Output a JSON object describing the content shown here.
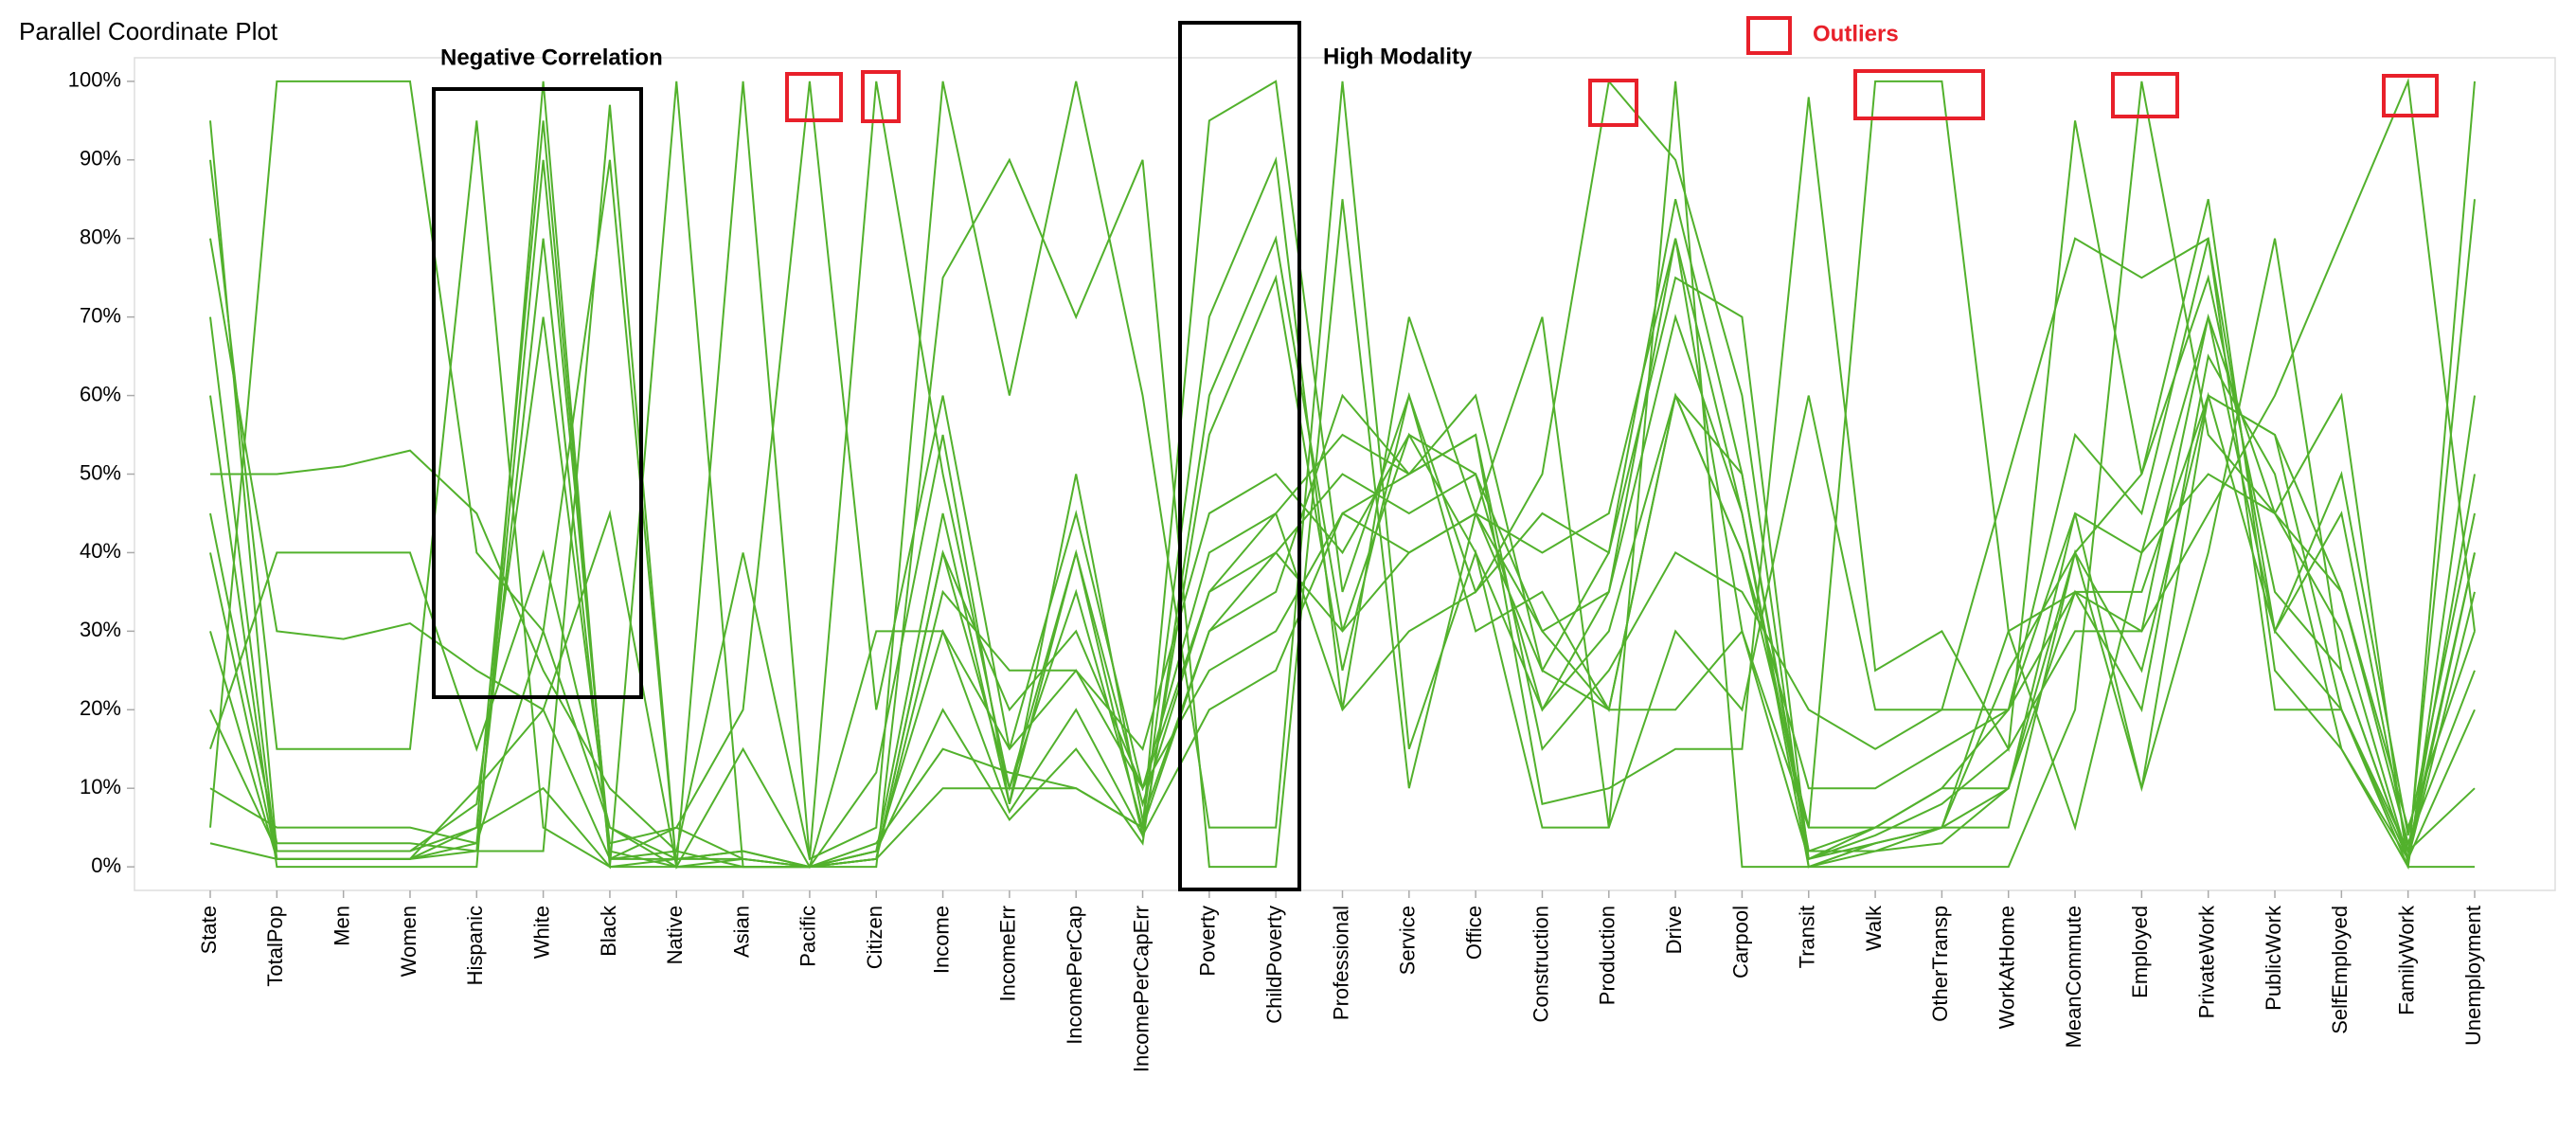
{
  "chart_data": {
    "type": "parallel",
    "title": "Parallel Coordinate Plot",
    "annotations": [
      "Negative Correlation",
      "High Modality",
      "Outliers"
    ],
    "categories": [
      "State",
      "TotalPop",
      "Men",
      "Women",
      "Hispanic",
      "White",
      "Black",
      "Native",
      "Asian",
      "Pacific",
      "Citizen",
      "Income",
      "IncomeErr",
      "IncomePerCap",
      "IncomePerCapErr",
      "Poverty",
      "ChildPoverty",
      "Professional",
      "Service",
      "Office",
      "Construction",
      "Production",
      "Drive",
      "Carpool",
      "Transit",
      "Walk",
      "OtherTransp",
      "WorkAtHome",
      "MeanCommute",
      "Employed",
      "PrivateWork",
      "PublicWork",
      "SelfEmployed",
      "FamilyWork",
      "Unemployment"
    ],
    "color": "#52b12c",
    "ylim": [
      -3,
      103
    ],
    "yticks": [
      {
        "value": 0,
        "label": "0%"
      },
      {
        "value": 10,
        "label": "10%"
      },
      {
        "value": 20,
        "label": "20%"
      },
      {
        "value": 30,
        "label": "30%"
      },
      {
        "value": 40,
        "label": "40%"
      },
      {
        "value": 50,
        "label": "50%"
      },
      {
        "value": 60,
        "label": "60%"
      },
      {
        "value": 70,
        "label": "70%"
      },
      {
        "value": 80,
        "label": "80%"
      },
      {
        "value": 90,
        "label": "90%"
      },
      {
        "value": 100,
        "label": "100%"
      }
    ],
    "series": [
      {
        "values": [
          5,
          100,
          100,
          100,
          40,
          30,
          5,
          1,
          2,
          0,
          1,
          40,
          10,
          35,
          5,
          30,
          40,
          50,
          45,
          50,
          20,
          30,
          60,
          40,
          5,
          5,
          10,
          20,
          45,
          40,
          70,
          30,
          20,
          2,
          40
        ]
      },
      {
        "values": [
          95,
          2,
          2,
          2,
          5,
          95,
          1,
          1,
          1,
          0,
          2,
          45,
          8,
          40,
          4,
          20,
          25,
          45,
          40,
          45,
          30,
          35,
          80,
          30,
          1,
          3,
          5,
          25,
          40,
          50,
          75,
          35,
          25,
          1,
          20
        ]
      },
      {
        "values": [
          10,
          5,
          5,
          5,
          3,
          30,
          90,
          0,
          1,
          0,
          2,
          20,
          6,
          15,
          3,
          60,
          80,
          30,
          55,
          40,
          20,
          35,
          70,
          45,
          2,
          2,
          3,
          10,
          35,
          20,
          65,
          50,
          15,
          0,
          60
        ]
      },
      {
        "values": [
          90,
          15,
          15,
          15,
          95,
          5,
          0,
          1,
          2,
          0,
          30,
          30,
          7,
          20,
          4,
          55,
          75,
          25,
          60,
          35,
          45,
          40,
          75,
          70,
          1,
          4,
          8,
          15,
          30,
          30,
          70,
          45,
          30,
          1,
          50
        ]
      },
      {
        "values": [
          3,
          1,
          1,
          1,
          10,
          20,
          1,
          5,
          20,
          100,
          20,
          60,
          15,
          45,
          10,
          25,
          30,
          45,
          50,
          60,
          25,
          20,
          60,
          40,
          10,
          10,
          15,
          20,
          35,
          35,
          60,
          55,
          35,
          5,
          30
        ]
      },
      {
        "values": [
          50,
          50,
          51,
          53,
          45,
          25,
          10,
          2,
          40,
          1,
          100,
          50,
          10,
          40,
          8,
          35,
          45,
          55,
          50,
          55,
          15,
          25,
          40,
          35,
          20,
          15,
          20,
          20,
          55,
          45,
          80,
          20,
          20,
          1,
          35
        ]
      },
      {
        "values": [
          70,
          1,
          1,
          1,
          5,
          10,
          0,
          100,
          0,
          0,
          3,
          15,
          12,
          10,
          5,
          95,
          100,
          35,
          60,
          30,
          35,
          20,
          60,
          50,
          1,
          5,
          10,
          10,
          45,
          10,
          40,
          80,
          25,
          1,
          85
        ]
      },
      {
        "values": [
          15,
          40,
          40,
          40,
          15,
          40,
          5,
          0,
          100,
          1,
          5,
          100,
          60,
          100,
          60,
          5,
          5,
          100,
          15,
          40,
          5,
          5,
          30,
          20,
          60,
          20,
          20,
          50,
          80,
          75,
          80,
          30,
          45,
          2,
          10
        ]
      },
      {
        "values": [
          40,
          1,
          1,
          1,
          2,
          90,
          2,
          0,
          0,
          0,
          1,
          40,
          20,
          30,
          10,
          40,
          45,
          20,
          30,
          35,
          50,
          100,
          90,
          60,
          0,
          2,
          5,
          10,
          40,
          25,
          60,
          30,
          50,
          4,
          45
        ]
      },
      {
        "values": [
          20,
          2,
          2,
          2,
          8,
          70,
          3,
          5,
          1,
          0,
          1,
          35,
          25,
          25,
          15,
          45,
          50,
          40,
          55,
          50,
          30,
          20,
          20,
          30,
          5,
          100,
          100,
          30,
          5,
          40,
          50,
          45,
          35,
          3,
          25
        ]
      },
      {
        "values": [
          60,
          0,
          0,
          0,
          0,
          100,
          0,
          0,
          0,
          0,
          0,
          75,
          90,
          70,
          90,
          0,
          0,
          85,
          10,
          45,
          70,
          5,
          100,
          0,
          0,
          0,
          0,
          0,
          20,
          100,
          55,
          45,
          60,
          0,
          0
        ]
      },
      {
        "values": [
          30,
          1,
          1,
          1,
          3,
          80,
          1,
          2,
          0,
          0,
          2,
          30,
          15,
          25,
          10,
          35,
          40,
          30,
          40,
          45,
          40,
          45,
          80,
          45,
          0,
          3,
          5,
          30,
          35,
          30,
          45,
          60,
          80,
          100,
          30
        ]
      },
      {
        "values": [
          80,
          30,
          29,
          31,
          25,
          20,
          45,
          0,
          15,
          0,
          12,
          55,
          8,
          50,
          6,
          30,
          35,
          60,
          50,
          55,
          8,
          10,
          15,
          15,
          98,
          25,
          30,
          15,
          95,
          50,
          85,
          25,
          15,
          1,
          40
        ]
      },
      {
        "values": [
          45,
          3,
          3,
          3,
          2,
          2,
          97,
          0,
          0,
          0,
          1,
          10,
          10,
          10,
          5,
          70,
          90,
          20,
          70,
          45,
          25,
          40,
          85,
          50,
          2,
          5,
          5,
          5,
          40,
          10,
          60,
          55,
          20,
          0,
          100
        ]
      }
    ]
  }
}
